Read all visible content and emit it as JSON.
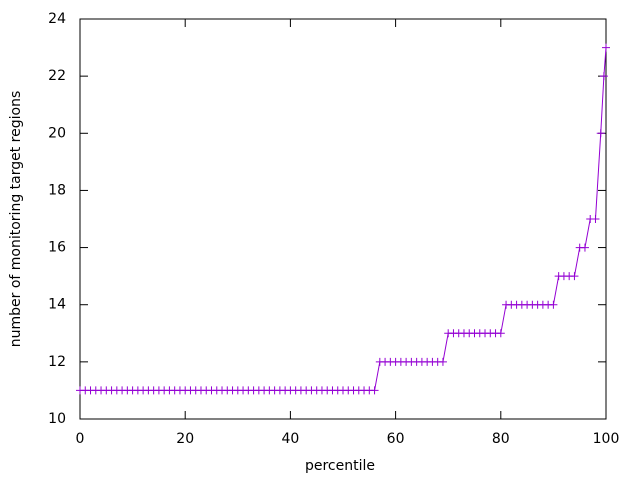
{
  "chart_data": {
    "type": "line",
    "xlabel": "percentile",
    "ylabel": "number of monitoring target regions",
    "x": [
      0,
      1,
      2,
      3,
      4,
      5,
      6,
      7,
      8,
      9,
      10,
      11,
      12,
      13,
      14,
      15,
      16,
      17,
      18,
      19,
      20,
      21,
      22,
      23,
      24,
      25,
      26,
      27,
      28,
      29,
      30,
      31,
      32,
      33,
      34,
      35,
      36,
      37,
      38,
      39,
      40,
      41,
      42,
      43,
      44,
      45,
      46,
      47,
      48,
      49,
      50,
      51,
      52,
      53,
      54,
      55,
      56,
      57,
      58,
      59,
      60,
      61,
      62,
      63,
      64,
      65,
      66,
      67,
      68,
      69,
      70,
      71,
      72,
      73,
      74,
      75,
      76,
      77,
      78,
      79,
      80,
      81,
      82,
      83,
      84,
      85,
      86,
      87,
      88,
      89,
      90,
      91,
      92,
      93,
      94,
      95,
      96,
      97,
      98,
      99,
      99.6,
      100
    ],
    "series": [
      {
        "color": "#9400d3",
        "marker": "plus",
        "values": [
          11,
          11,
          11,
          11,
          11,
          11,
          11,
          11,
          11,
          11,
          11,
          11,
          11,
          11,
          11,
          11,
          11,
          11,
          11,
          11,
          11,
          11,
          11,
          11,
          11,
          11,
          11,
          11,
          11,
          11,
          11,
          11,
          11,
          11,
          11,
          11,
          11,
          11,
          11,
          11,
          11,
          11,
          11,
          11,
          11,
          11,
          11,
          11,
          11,
          11,
          11,
          11,
          11,
          11,
          11,
          11,
          11,
          12,
          12,
          12,
          12,
          12,
          12,
          12,
          12,
          12,
          12,
          12,
          12,
          12,
          13,
          13,
          13,
          13,
          13,
          13,
          13,
          13,
          13,
          13,
          13,
          14,
          14,
          14,
          14,
          14,
          14,
          14,
          14,
          14,
          14,
          15,
          15,
          15,
          15,
          16,
          16,
          17,
          17,
          20,
          22,
          23
        ]
      }
    ],
    "xlim": [
      0,
      100
    ],
    "xticks": [
      0,
      20,
      40,
      60,
      80,
      100
    ],
    "ylim": [
      10,
      24
    ],
    "yticks": [
      10,
      12,
      14,
      16,
      18,
      20,
      22,
      24
    ]
  }
}
